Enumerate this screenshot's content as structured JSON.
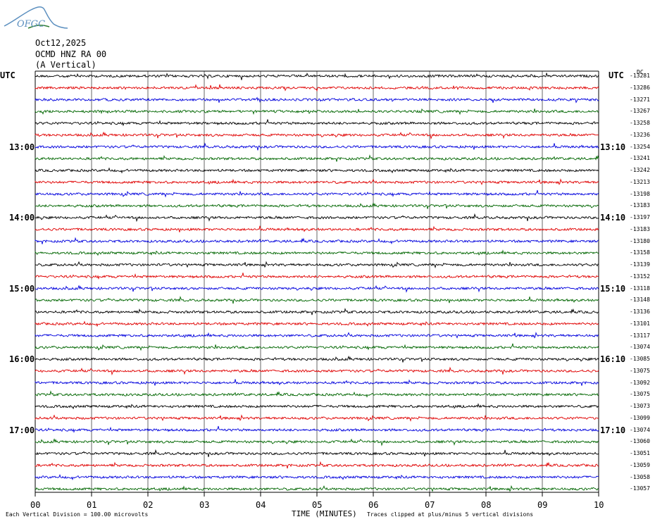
{
  "header": {
    "logo_text": "OFGC",
    "date": "Oct12,2025",
    "station": "OCMD HNZ RA 00",
    "component": "(A Vertical)",
    "left_tz": "UTC",
    "right_tz": "UTC",
    "dc_label": "DC"
  },
  "footer": {
    "x_axis_label": "TIME (MINUTES)",
    "scale_note": "Each Vertical Division =  100.00 microvolts",
    "clip_note": "Traces clipped at plus/minus 5 vertical divisions"
  },
  "colors": {
    "trace_cycle": [
      "#000000",
      "#e00000",
      "#0000dd",
      "#006600"
    ],
    "grid": "#000000",
    "logo": "#5b8fbf"
  },
  "chart_data": {
    "type": "line",
    "x_ticks": [
      "00",
      "01",
      "02",
      "03",
      "04",
      "05",
      "06",
      "07",
      "08",
      "09",
      "10"
    ],
    "xlim": [
      0,
      10
    ],
    "trace_count": 36,
    "trace_minutes": 10,
    "left_hour_labels": [
      {
        "trace": 6,
        "label": "13:00"
      },
      {
        "trace": 12,
        "label": "14:00"
      },
      {
        "trace": 18,
        "label": "15:00"
      },
      {
        "trace": 24,
        "label": "16:00"
      },
      {
        "trace": 30,
        "label": "17:00"
      }
    ],
    "right_hour_labels": [
      {
        "trace": 6,
        "label": "13:10"
      },
      {
        "trace": 12,
        "label": "14:10"
      },
      {
        "trace": 18,
        "label": "15:10"
      },
      {
        "trace": 24,
        "label": "16:10"
      },
      {
        "trace": 30,
        "label": "17:10"
      }
    ],
    "dc_offsets": [
      "-13281",
      "-13286",
      "-13271",
      "-13267",
      "-13258",
      "-13236",
      "-13254",
      "-13241",
      "-13242",
      "-13213",
      "-13198",
      "-13183",
      "-13197",
      "-13183",
      "-13180",
      "-13158",
      "-13139",
      "-13152",
      "-13118",
      "-13148",
      "-13136",
      "-13101",
      "-13117",
      "-13074",
      "-13085",
      "-13075",
      "-13092",
      "-13075",
      "-13073",
      "-13099",
      "-13074",
      "-13060",
      "-13051",
      "-13059",
      "-13058",
      "-13057"
    ]
  }
}
